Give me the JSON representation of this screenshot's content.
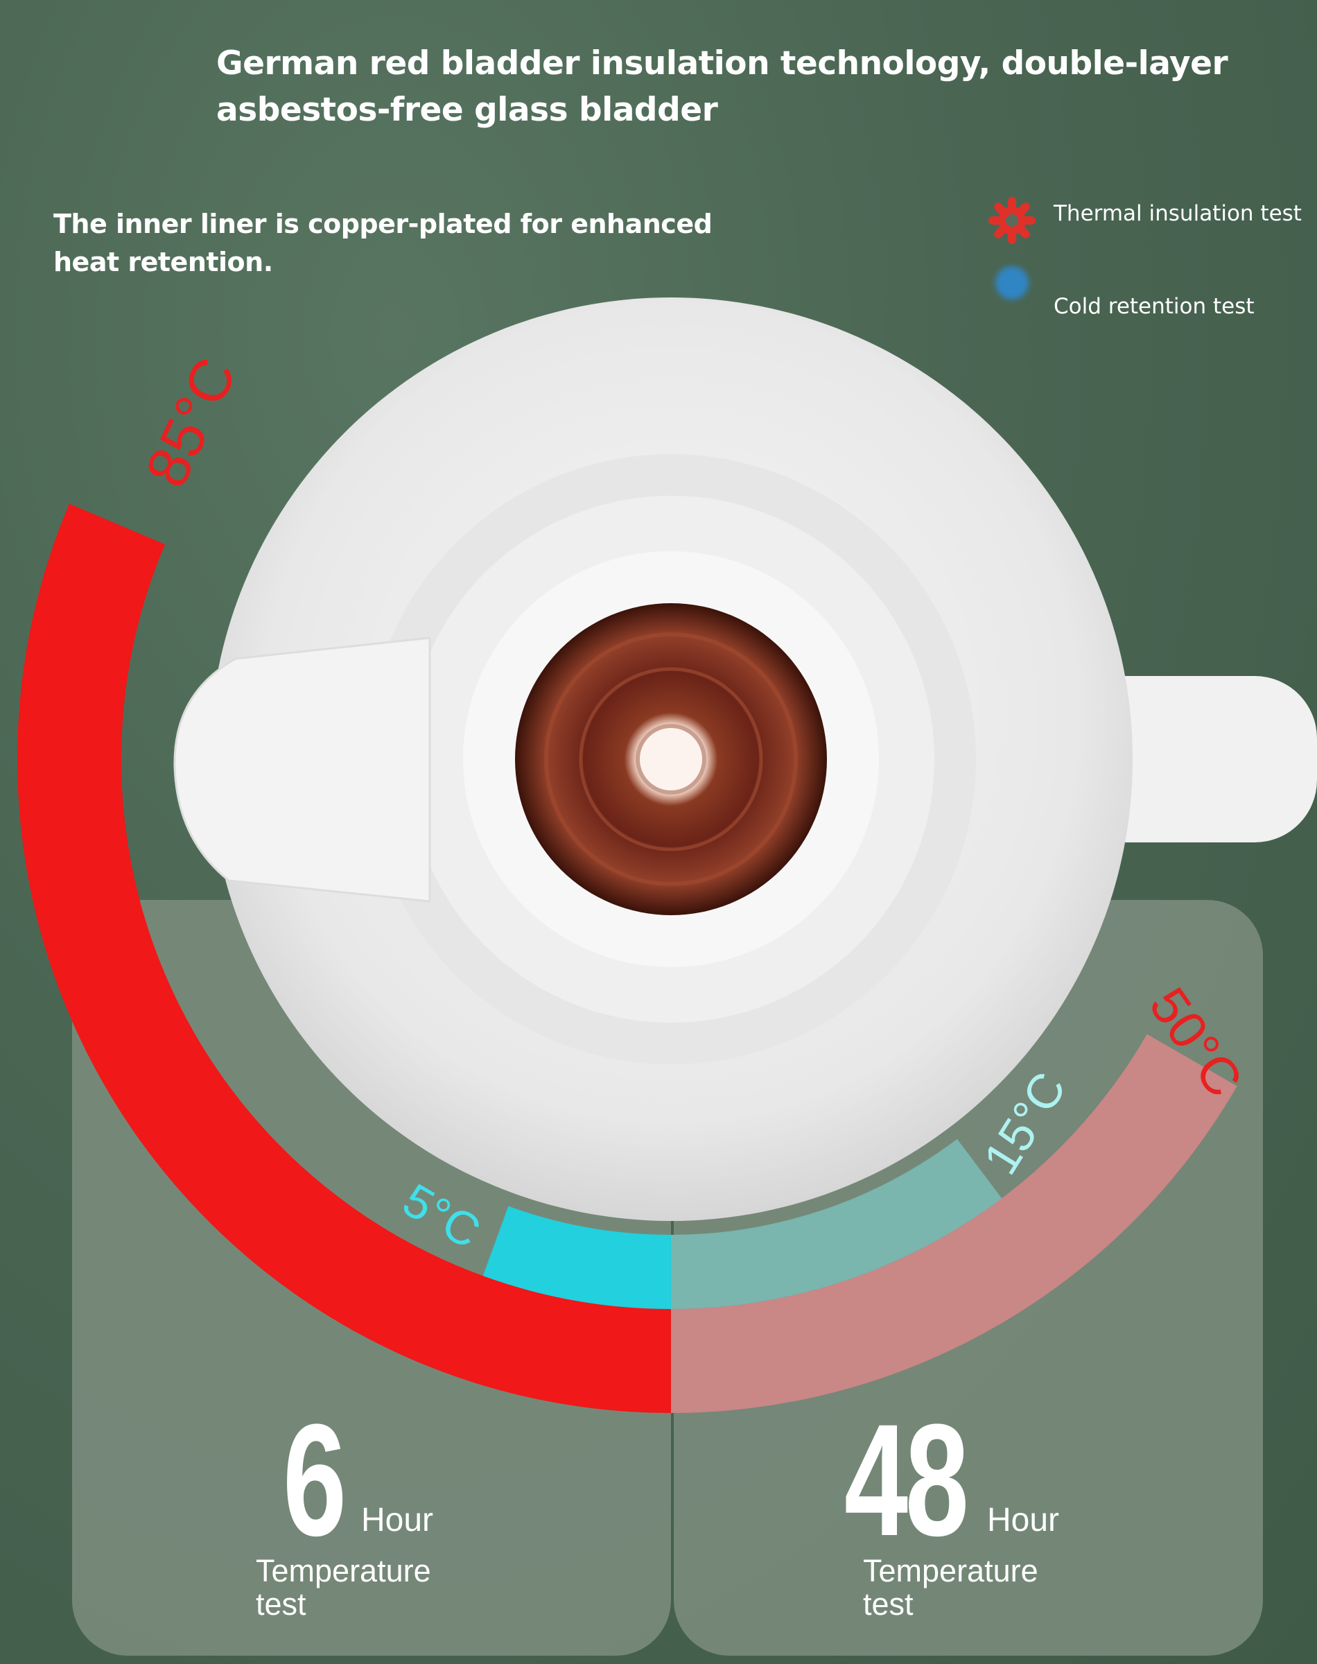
{
  "header": {
    "title": "German red bladder insulation technology, double-layer asbestos-free glass bladder",
    "subtitle": "The inner liner is copper-plated for enhanced heat retention."
  },
  "legend": [
    {
      "icon": "sun-icon",
      "label": "Thermal insulation test",
      "color": "#e0302a"
    },
    {
      "icon": "snowflake-icon",
      "label": "Cold retention test",
      "color": "#2a8de0"
    }
  ],
  "gauge": {
    "hot_start": "85°C",
    "hot_end": "50°C",
    "cold_start": "5°C",
    "cold_end": "15°C",
    "colors": {
      "hot": "#f01818",
      "hot_faded": "#c98786",
      "cold": "#22d0de",
      "cold_faded": "#7ab5ae"
    }
  },
  "panels": [
    {
      "number": "6",
      "unit": "Hour",
      "caption": "Temperature test"
    },
    {
      "number": "48",
      "unit": "Hour",
      "caption": "Temperature test"
    }
  ]
}
